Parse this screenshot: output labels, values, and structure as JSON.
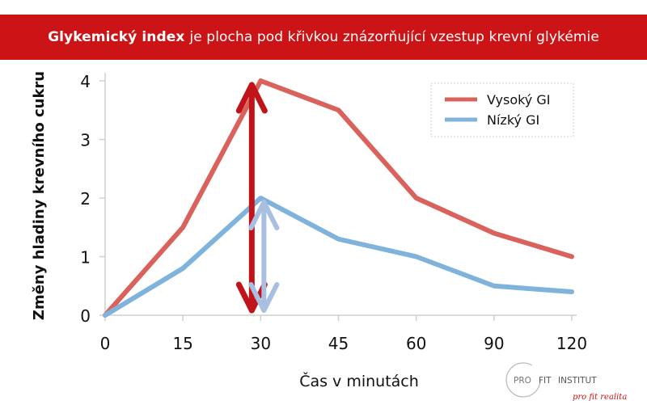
{
  "banner": {
    "bold": "Glykemický index",
    "rest": "je plocha pod křivkou znázorňující vzestup krevní glykémie"
  },
  "logo": {
    "pro": "PRO",
    "fit": "FIT",
    "institut": "INSTITUT",
    "tagline": "pro fit realita"
  },
  "colors": {
    "banner": "#cc1417",
    "high": "#d9625c",
    "low": "#7fb3dc",
    "arrow_high": "#c0141a",
    "arrow_low": "#a8bfe2"
  },
  "chart_data": {
    "type": "line",
    "categories": [
      "0",
      "15",
      "30",
      "45",
      "60",
      "90",
      "120"
    ],
    "series": [
      {
        "name": "Vysoký GI",
        "values": [
          0,
          1.5,
          4,
          3.5,
          2,
          1.4,
          1
        ]
      },
      {
        "name": "Nízký GI",
        "values": [
          0,
          0.8,
          2,
          1.3,
          1,
          0.5,
          0.4
        ]
      }
    ],
    "xlabel": "Čas v minutách",
    "ylabel": "Změny hladiny krevního cukru",
    "yticks": [
      "0",
      "1",
      "2",
      "3",
      "4"
    ],
    "ylim": [
      0,
      4
    ],
    "grid": false,
    "legend": "top-right",
    "annotations": [
      {
        "type": "double-arrow",
        "x": "30",
        "from": 0,
        "to": 4,
        "series": "Vysoký GI"
      },
      {
        "type": "double-arrow",
        "x": "30",
        "from": 0,
        "to": 2,
        "series": "Nízký GI"
      }
    ]
  }
}
